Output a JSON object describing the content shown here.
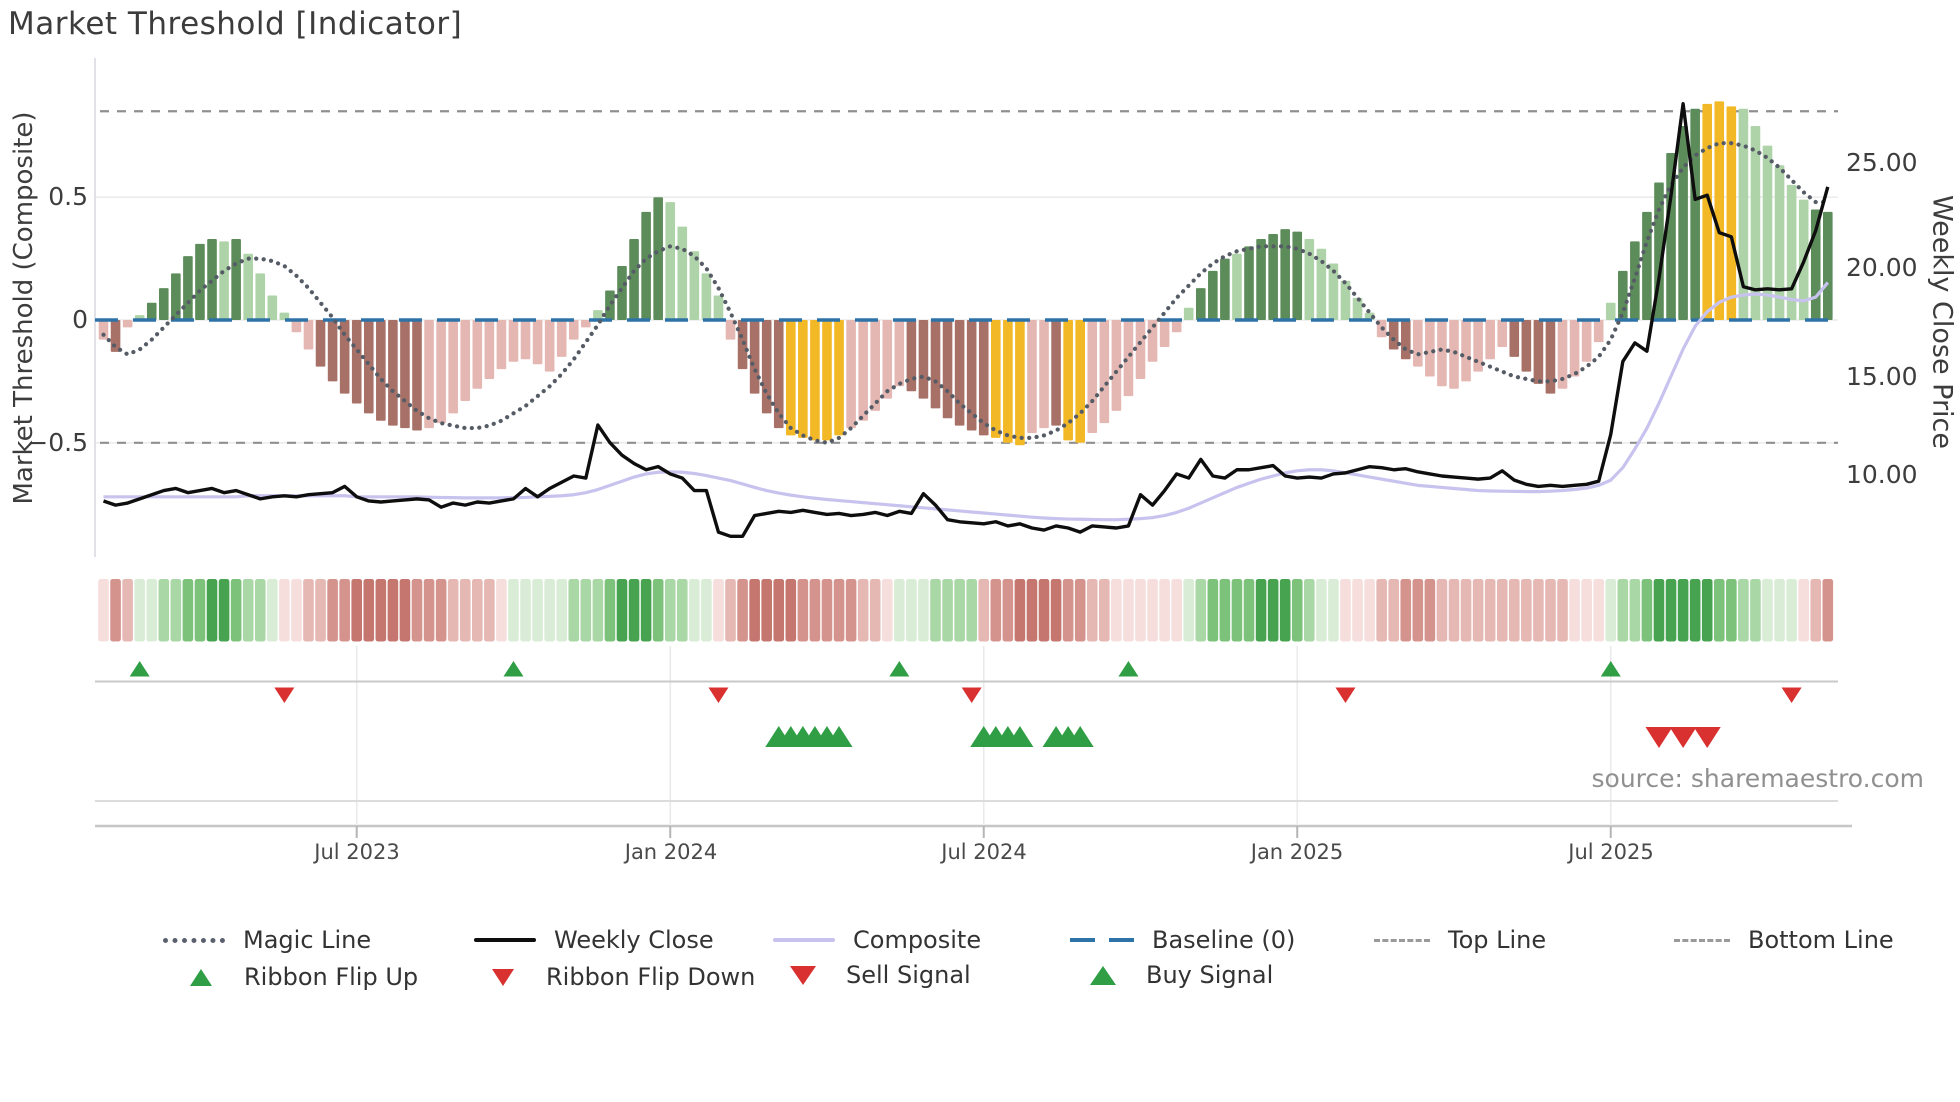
{
  "title": "Market Threshold [Indicator]",
  "source": "source: sharemaestro.com",
  "axes": {
    "left_label": "Market Threshold (Composite)",
    "right_label": "Weekly Close Price",
    "left_ticks": [
      {
        "label": "0.5",
        "value": 0.5
      },
      {
        "label": "0",
        "value": 0
      },
      {
        "label": "−0.5",
        "value": -0.5
      }
    ],
    "right_ticks": [
      {
        "label": "25.00",
        "value": 25
      },
      {
        "label": "20.00",
        "value": 20
      },
      {
        "label": "15.00",
        "value": 15
      },
      {
        "label": "10.00",
        "value": 10
      }
    ],
    "x_ticks": [
      {
        "label": "Jul 2023",
        "week": 21
      },
      {
        "label": "Jan 2024",
        "week": 47
      },
      {
        "label": "Jul 2024",
        "week": 73
      },
      {
        "label": "Jan 2025",
        "week": 99
      },
      {
        "label": "Jul 2025",
        "week": 125
      }
    ]
  },
  "legend": {
    "row1": [
      {
        "label": "Magic Line"
      },
      {
        "label": "Weekly Close"
      },
      {
        "label": "Composite"
      },
      {
        "label": "Baseline (0)"
      },
      {
        "label": "Top Line"
      },
      {
        "label": "Bottom Line"
      }
    ],
    "row2": [
      {
        "label": "Ribbon Flip Up"
      },
      {
        "label": "Ribbon Flip Down"
      },
      {
        "label": "Sell Signal"
      },
      {
        "label": "Buy Signal"
      }
    ]
  },
  "chart_data": {
    "type": "mixed: weekly threshold bars + magic/composite/close lines + momentum ribbon heatmap + signal markers",
    "x_unit": "week",
    "x_range_approx": "Feb 2023 to Nov 2025",
    "n_weeks": 144,
    "baseline": 0,
    "top_line": 0.85,
    "bottom_line": -0.5,
    "threshold_axis_visible_range": [
      -0.95,
      1.05
    ],
    "price_axis_visible_range": [
      6.2,
      29.5
    ],
    "legend_position": "bottom",
    "grid": "horizontal at 0.5, 0, -0.5; vertical date gridlines in signal panel",
    "weeks": {
      "threshold": [
        -0.08,
        -0.13,
        -0.03,
        0.02,
        0.07,
        0.13,
        0.19,
        0.26,
        0.31,
        0.33,
        0.32,
        0.33,
        0.27,
        0.19,
        0.1,
        0.03,
        -0.05,
        -0.12,
        -0.19,
        -0.25,
        -0.3,
        -0.34,
        -0.38,
        -0.41,
        -0.43,
        -0.44,
        -0.45,
        -0.44,
        -0.42,
        -0.38,
        -0.33,
        -0.28,
        -0.24,
        -0.2,
        -0.17,
        -0.16,
        -0.18,
        -0.21,
        -0.15,
        -0.08,
        -0.03,
        0.04,
        0.12,
        0.22,
        0.33,
        0.44,
        0.5,
        0.48,
        0.38,
        0.28,
        0.19,
        0.1,
        -0.08,
        -0.2,
        -0.3,
        -0.38,
        -0.44,
        -0.47,
        -0.48,
        -0.49,
        -0.49,
        -0.47,
        -0.44,
        -0.41,
        -0.37,
        -0.32,
        -0.27,
        -0.29,
        -0.32,
        -0.36,
        -0.4,
        -0.43,
        -0.45,
        -0.47,
        -0.48,
        -0.5,
        -0.51,
        -0.46,
        -0.44,
        -0.43,
        -0.49,
        -0.5,
        -0.46,
        -0.42,
        -0.37,
        -0.31,
        -0.24,
        -0.17,
        -0.11,
        -0.05,
        0.05,
        0.13,
        0.2,
        0.25,
        0.27,
        0.3,
        0.33,
        0.35,
        0.37,
        0.36,
        0.33,
        0.29,
        0.23,
        0.16,
        0.09,
        0.03,
        -0.07,
        -0.12,
        -0.16,
        -0.19,
        -0.23,
        -0.27,
        -0.28,
        -0.25,
        -0.21,
        -0.16,
        -0.11,
        -0.15,
        -0.21,
        -0.26,
        -0.3,
        -0.28,
        -0.23,
        -0.17,
        -0.09,
        0.07,
        0.2,
        0.32,
        0.44,
        0.56,
        0.68,
        0.79,
        0.86,
        0.88,
        0.89,
        0.87,
        0.86,
        0.79,
        0.71,
        0.63,
        0.55,
        0.49,
        0.45,
        0.44
      ],
      "bar_color": [
        "p",
        "r",
        "p",
        "l",
        "d",
        "d",
        "d",
        "d",
        "d",
        "d",
        "l",
        "d",
        "l",
        "l",
        "l",
        "l",
        "p",
        "p",
        "r",
        "r",
        "r",
        "r",
        "r",
        "r",
        "r",
        "r",
        "r",
        "p",
        "p",
        "p",
        "p",
        "p",
        "p",
        "p",
        "p",
        "p",
        "p",
        "p",
        "p",
        "p",
        "p",
        "l",
        "d",
        "d",
        "d",
        "d",
        "d",
        "l",
        "l",
        "l",
        "l",
        "l",
        "p",
        "r",
        "r",
        "r",
        "r",
        "a",
        "a",
        "a",
        "a",
        "a",
        "p",
        "p",
        "p",
        "p",
        "p",
        "r",
        "r",
        "r",
        "r",
        "r",
        "r",
        "r",
        "a",
        "a",
        "a",
        "p",
        "p",
        "r",
        "a",
        "a",
        "p",
        "p",
        "p",
        "p",
        "p",
        "p",
        "p",
        "p",
        "l",
        "d",
        "d",
        "d",
        "l",
        "d",
        "d",
        "d",
        "d",
        "d",
        "l",
        "l",
        "l",
        "l",
        "l",
        "l",
        "p",
        "r",
        "r",
        "p",
        "p",
        "p",
        "p",
        "p",
        "p",
        "p",
        "p",
        "r",
        "r",
        "r",
        "r",
        "p",
        "p",
        "p",
        "p",
        "l",
        "d",
        "d",
        "d",
        "d",
        "d",
        "d",
        "d",
        "a",
        "a",
        "a",
        "l",
        "l",
        "l",
        "l",
        "l",
        "l",
        "d",
        "d"
      ],
      "magic_line": [
        -0.06,
        -0.11,
        -0.14,
        -0.12,
        -0.08,
        -0.03,
        0.02,
        0.07,
        0.12,
        0.16,
        0.2,
        0.23,
        0.25,
        0.25,
        0.24,
        0.22,
        0.18,
        0.13,
        0.07,
        0.01,
        -0.06,
        -0.12,
        -0.18,
        -0.24,
        -0.29,
        -0.33,
        -0.37,
        -0.4,
        -0.42,
        -0.43,
        -0.44,
        -0.44,
        -0.43,
        -0.41,
        -0.38,
        -0.35,
        -0.31,
        -0.27,
        -0.22,
        -0.16,
        -0.09,
        -0.02,
        0.06,
        0.13,
        0.2,
        0.25,
        0.28,
        0.3,
        0.29,
        0.26,
        0.21,
        0.13,
        0.03,
        -0.08,
        -0.2,
        -0.3,
        -0.38,
        -0.44,
        -0.47,
        -0.49,
        -0.5,
        -0.48,
        -0.44,
        -0.39,
        -0.34,
        -0.29,
        -0.26,
        -0.24,
        -0.23,
        -0.25,
        -0.29,
        -0.34,
        -0.38,
        -0.42,
        -0.45,
        -0.47,
        -0.48,
        -0.48,
        -0.47,
        -0.45,
        -0.42,
        -0.38,
        -0.33,
        -0.27,
        -0.21,
        -0.15,
        -0.09,
        -0.03,
        0.03,
        0.09,
        0.14,
        0.19,
        0.23,
        0.26,
        0.28,
        0.29,
        0.3,
        0.3,
        0.3,
        0.29,
        0.27,
        0.24,
        0.2,
        0.15,
        0.09,
        0.03,
        -0.03,
        -0.08,
        -0.12,
        -0.14,
        -0.13,
        -0.12,
        -0.13,
        -0.15,
        -0.17,
        -0.19,
        -0.21,
        -0.23,
        -0.24,
        -0.25,
        -0.25,
        -0.24,
        -0.22,
        -0.19,
        -0.15,
        -0.08,
        0.03,
        0.17,
        0.32,
        0.45,
        0.55,
        0.62,
        0.67,
        0.7,
        0.72,
        0.72,
        0.71,
        0.69,
        0.66,
        0.62,
        0.57,
        0.52,
        0.48,
        0.48
      ],
      "weekly_close": [
        8.8,
        8.6,
        8.7,
        8.9,
        9.1,
        9.3,
        9.4,
        9.2,
        9.3,
        9.4,
        9.2,
        9.3,
        9.1,
        8.9,
        9.0,
        9.05,
        9.0,
        9.1,
        9.15,
        9.2,
        9.5,
        9.0,
        8.8,
        8.75,
        8.8,
        8.85,
        8.9,
        8.85,
        8.5,
        8.7,
        8.6,
        8.75,
        8.7,
        8.8,
        8.9,
        9.4,
        9.0,
        9.4,
        9.7,
        10.0,
        9.9,
        12.45,
        11.6,
        11.0,
        10.6,
        10.3,
        10.45,
        10.1,
        9.9,
        9.3,
        9.3,
        7.3,
        7.1,
        7.1,
        8.1,
        8.2,
        8.3,
        8.25,
        8.35,
        8.25,
        8.15,
        8.2,
        8.1,
        8.15,
        8.25,
        8.1,
        8.3,
        8.2,
        9.15,
        8.6,
        7.9,
        7.8,
        7.75,
        7.7,
        7.8,
        7.6,
        7.7,
        7.5,
        7.4,
        7.6,
        7.5,
        7.3,
        7.6,
        7.55,
        7.5,
        7.6,
        9.1,
        8.6,
        9.3,
        10.1,
        9.9,
        10.8,
        10.0,
        9.9,
        10.3,
        10.3,
        10.4,
        10.5,
        10.0,
        9.9,
        9.95,
        9.9,
        10.1,
        10.15,
        10.3,
        10.45,
        10.4,
        10.3,
        10.35,
        10.2,
        10.1,
        10.0,
        9.95,
        9.9,
        9.85,
        9.9,
        10.25,
        9.8,
        9.6,
        9.5,
        9.55,
        9.5,
        9.55,
        9.6,
        9.75,
        12.0,
        15.5,
        16.4,
        16.0,
        19.5,
        23.5,
        27.9,
        23.3,
        23.5,
        21.7,
        21.5,
        19.1,
        18.95,
        19.0,
        18.95,
        19.0,
        20.3,
        21.8,
        23.9
      ],
      "composite_price": [
        9.0,
        9.0,
        9.0,
        9.0,
        9.0,
        9.0,
        9.0,
        9.0,
        9.0,
        9.0,
        9.0,
        9.0,
        9.05,
        9.05,
        9.05,
        9.05,
        9.05,
        9.05,
        9.05,
        9.05,
        9.05,
        9.0,
        9.0,
        9.0,
        9.0,
        9.0,
        9.0,
        8.98,
        8.97,
        8.96,
        8.95,
        8.95,
        8.95,
        8.95,
        8.96,
        8.97,
        9.0,
        9.02,
        9.05,
        9.1,
        9.2,
        9.35,
        9.55,
        9.75,
        9.95,
        10.1,
        10.18,
        10.2,
        10.18,
        10.12,
        10.02,
        9.9,
        9.78,
        9.62,
        9.45,
        9.3,
        9.18,
        9.08,
        9.0,
        8.93,
        8.87,
        8.82,
        8.77,
        8.72,
        8.67,
        8.62,
        8.57,
        8.52,
        8.47,
        8.42,
        8.37,
        8.32,
        8.27,
        8.22,
        8.17,
        8.12,
        8.07,
        8.02,
        7.98,
        7.95,
        7.93,
        7.92,
        7.91,
        7.9,
        7.9,
        7.92,
        7.95,
        8.0,
        8.1,
        8.25,
        8.45,
        8.7,
        8.95,
        9.2,
        9.45,
        9.65,
        9.85,
        10.0,
        10.15,
        10.25,
        10.3,
        10.3,
        10.25,
        10.15,
        10.05,
        9.95,
        9.85,
        9.75,
        9.65,
        9.55,
        9.5,
        9.45,
        9.4,
        9.35,
        9.3,
        9.28,
        9.27,
        9.26,
        9.25,
        9.25,
        9.27,
        9.3,
        9.35,
        9.42,
        9.55,
        9.8,
        10.4,
        11.3,
        12.3,
        13.5,
        14.8,
        16.1,
        17.2,
        17.9,
        18.35,
        18.6,
        18.7,
        18.75,
        18.7,
        18.6,
        18.48,
        18.42,
        18.6,
        19.3
      ],
      "ribbon": [
        "r1",
        "r3",
        "r2",
        "g1",
        "g1",
        "g2",
        "g2",
        "g3",
        "g3",
        "g4",
        "g4",
        "g3",
        "g2",
        "g2",
        "g1",
        "r1",
        "r1",
        "r2",
        "r2",
        "r3",
        "r3",
        "r4",
        "r4",
        "r4",
        "r4",
        "r4",
        "r3",
        "r3",
        "r3",
        "r2",
        "r2",
        "r2",
        "r2",
        "r1",
        "g1",
        "g1",
        "g1",
        "g1",
        "g1",
        "g2",
        "g2",
        "g2",
        "g3",
        "g4",
        "g4",
        "g4",
        "g3",
        "g2",
        "g2",
        "g1",
        "g1",
        "r1",
        "r2",
        "r3",
        "r4",
        "r4",
        "r4",
        "r4",
        "r3",
        "r3",
        "r3",
        "r3",
        "r3",
        "r2",
        "r2",
        "r1",
        "g1",
        "g1",
        "g1",
        "g2",
        "g2",
        "g2",
        "g2",
        "r2",
        "r3",
        "r3",
        "r4",
        "r4",
        "r4",
        "r4",
        "r3",
        "r3",
        "r2",
        "r2",
        "r1",
        "r1",
        "r1",
        "r1",
        "r1",
        "r1",
        "g1",
        "g2",
        "g3",
        "g3",
        "g3",
        "g3",
        "g4",
        "g4",
        "g4",
        "g3",
        "g2",
        "g1",
        "g1",
        "r1",
        "r1",
        "r1",
        "r2",
        "r2",
        "r3",
        "r3",
        "r3",
        "r2",
        "r2",
        "r2",
        "r2",
        "r2",
        "r2",
        "r2",
        "r2",
        "r2",
        "r2",
        "r2",
        "r1",
        "r1",
        "r1",
        "g1",
        "g2",
        "g2",
        "g3",
        "g4",
        "g4",
        "g4",
        "g4",
        "g4",
        "g3",
        "g3",
        "g2",
        "g2",
        "g1",
        "g1",
        "g1",
        "r1",
        "r2",
        "r3"
      ]
    },
    "signals": {
      "ribbon_flip_up_weeks": [
        3,
        34,
        66,
        85,
        125
      ],
      "ribbon_flip_down_weeks": [
        15,
        51,
        72,
        103,
        140
      ],
      "buy_signal_weeks": [
        56,
        57,
        58,
        59,
        60,
        61,
        73,
        74,
        75,
        76,
        79,
        80,
        81
      ],
      "sell_signal_weeks": [
        129,
        131,
        133
      ]
    },
    "colors": {
      "bars": {
        "d": "#5d8c5b",
        "l": "#aed3a8",
        "p": "#e5b7b2",
        "r": "#a87168",
        "a": "#f2b825"
      },
      "ribbon": {
        "g1": "#d9edd6",
        "g2": "#a9d7a5",
        "g3": "#7cc27b",
        "g4": "#47a350",
        "r1": "#f5dedc",
        "r2": "#e6b8b4",
        "r3": "#d5938d",
        "r4": "#c4766f"
      },
      "magic_line": "#565c66",
      "weekly_close": "#0e0e0e",
      "composite": "#c8c3ee",
      "baseline": "#2e73a8",
      "top_bottom_line": "#909090",
      "flip_up_marker": "#2f9e44",
      "flip_down_marker": "#d93030",
      "buy_marker": "#2f9e44",
      "sell_marker": "#d93030"
    }
  }
}
